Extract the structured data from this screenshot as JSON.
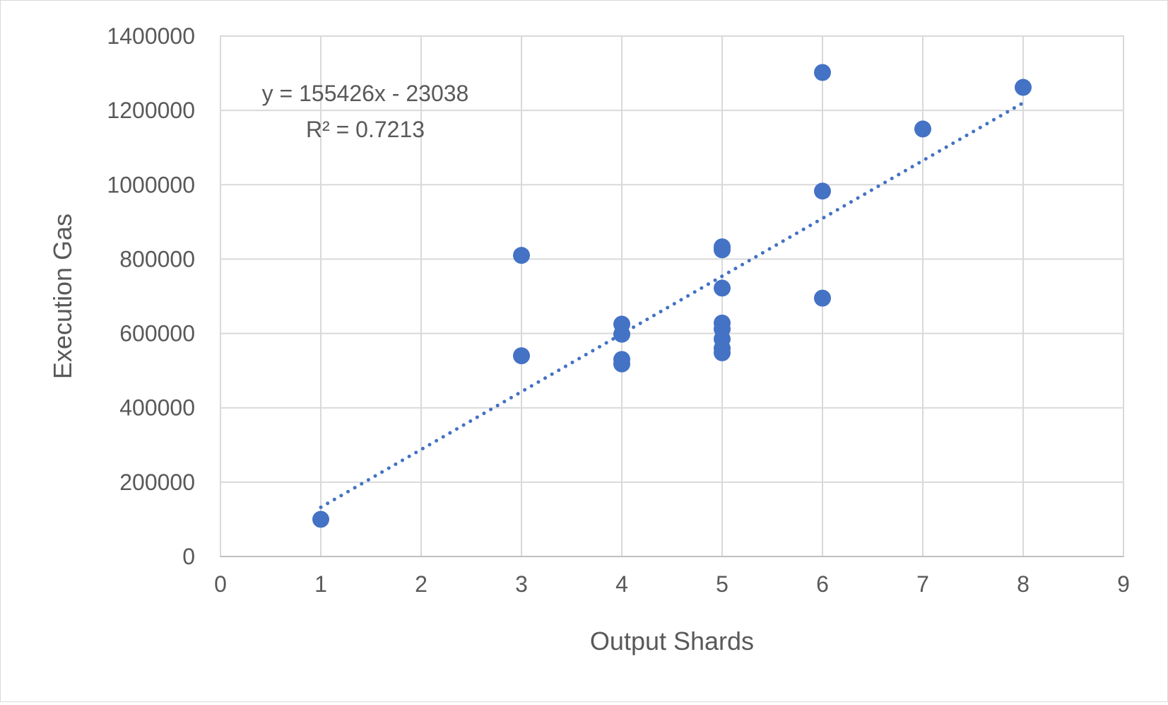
{
  "chart_data": {
    "type": "scatter",
    "title": "",
    "xlabel": "Output Shards",
    "ylabel": "Execution Gas",
    "xlim": [
      0,
      9
    ],
    "ylim": [
      0,
      1400000
    ],
    "x_ticks": [
      "0",
      "1",
      "2",
      "3",
      "4",
      "5",
      "6",
      "7",
      "8",
      "9"
    ],
    "y_ticks": [
      "0",
      "200000",
      "400000",
      "600000",
      "800000",
      "1000000",
      "1200000",
      "1400000"
    ],
    "grid": true,
    "legend": "none",
    "marker_color": "#4472C4",
    "series": [
      {
        "points": [
          {
            "x": 1,
            "y": 100000
          },
          {
            "x": 3,
            "y": 540000
          },
          {
            "x": 3,
            "y": 810000
          },
          {
            "x": 4,
            "y": 625000
          },
          {
            "x": 4,
            "y": 598000
          },
          {
            "x": 4,
            "y": 530000
          },
          {
            "x": 4,
            "y": 518000
          },
          {
            "x": 5,
            "y": 833000
          },
          {
            "x": 5,
            "y": 825000
          },
          {
            "x": 5,
            "y": 722000
          },
          {
            "x": 5,
            "y": 628000
          },
          {
            "x": 5,
            "y": 612000
          },
          {
            "x": 5,
            "y": 585000
          },
          {
            "x": 5,
            "y": 560000
          },
          {
            "x": 5,
            "y": 548000
          },
          {
            "x": 6,
            "y": 1302000
          },
          {
            "x": 6,
            "y": 983000
          },
          {
            "x": 6,
            "y": 695000
          },
          {
            "x": 7,
            "y": 1150000
          },
          {
            "x": 8,
            "y": 1262000
          }
        ]
      }
    ],
    "trendline": {
      "type": "linear",
      "style": "dotted",
      "slope": 155426,
      "intercept": -23038,
      "x_range": [
        1,
        8
      ],
      "equation_text": "y = 155426x - 23038",
      "r2_text": "R² = 0.7213"
    }
  }
}
